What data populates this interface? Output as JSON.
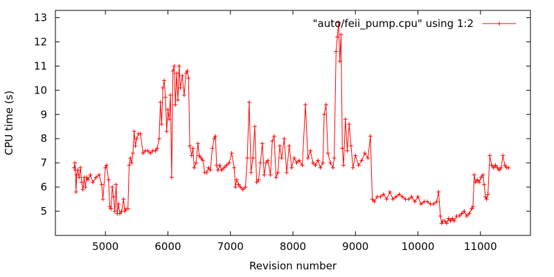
{
  "chart_data": {
    "type": "line",
    "markers": "plus",
    "title": "",
    "xlabel": "Revision number",
    "ylabel": "CPU time (s)",
    "xlim": [
      4200,
      11800
    ],
    "ylim": [
      4.0,
      13.3
    ],
    "xticks": [
      5000,
      6000,
      7000,
      8000,
      9000,
      10000,
      11000
    ],
    "yticks": [
      5,
      6,
      7,
      8,
      9,
      10,
      11,
      12,
      13
    ],
    "legend_position": "top-right",
    "grid": false,
    "series": [
      {
        "name": "\"auto/feii_pump.cpu\" using 1:2",
        "color": "#ff0000",
        "points": [
          [
            4500,
            6.8
          ],
          [
            4510,
            7.0
          ],
          [
            4520,
            6.7
          ],
          [
            4530,
            5.8
          ],
          [
            4540,
            6.5
          ],
          [
            4560,
            6.7
          ],
          [
            4580,
            6.4
          ],
          [
            4600,
            6.8
          ],
          [
            4620,
            6.2
          ],
          [
            4640,
            5.9
          ],
          [
            4660,
            6.4
          ],
          [
            4680,
            6.0
          ],
          [
            4700,
            6.4
          ],
          [
            4720,
            6.3
          ],
          [
            4760,
            6.5
          ],
          [
            4800,
            6.2
          ],
          [
            4850,
            6.4
          ],
          [
            4900,
            6.5
          ],
          [
            4940,
            6.1
          ],
          [
            4960,
            5.5
          ],
          [
            5000,
            6.8
          ],
          [
            5020,
            6.9
          ],
          [
            5050,
            6.3
          ],
          [
            5070,
            5.2
          ],
          [
            5090,
            5.1
          ],
          [
            5110,
            6.0
          ],
          [
            5130,
            5.6
          ],
          [
            5150,
            5.0
          ],
          [
            5170,
            6.1
          ],
          [
            5190,
            4.9
          ],
          [
            5210,
            5.3
          ],
          [
            5230,
            4.9
          ],
          [
            5260,
            5.0
          ],
          [
            5290,
            5.5
          ],
          [
            5310,
            5.0
          ],
          [
            5330,
            5.1
          ],
          [
            5360,
            5.1
          ],
          [
            5380,
            6.9
          ],
          [
            5400,
            7.2
          ],
          [
            5420,
            7.0
          ],
          [
            5440,
            7.4
          ],
          [
            5460,
            8.3
          ],
          [
            5480,
            7.7
          ],
          [
            5500,
            8.0
          ],
          [
            5530,
            8.2
          ],
          [
            5560,
            8.2
          ],
          [
            5600,
            7.4
          ],
          [
            5640,
            7.5
          ],
          [
            5680,
            7.5
          ],
          [
            5720,
            7.4
          ],
          [
            5760,
            7.5
          ],
          [
            5800,
            7.5
          ],
          [
            5830,
            7.6
          ],
          [
            5860,
            8.0
          ],
          [
            5880,
            9.5
          ],
          [
            5900,
            8.6
          ],
          [
            5920,
            10.1
          ],
          [
            5940,
            10.4
          ],
          [
            5960,
            9.7
          ],
          [
            5980,
            8.3
          ],
          [
            6000,
            9.2
          ],
          [
            6020,
            8.8
          ],
          [
            6040,
            9.8
          ],
          [
            6060,
            6.4
          ],
          [
            6080,
            10.8
          ],
          [
            6100,
            11.0
          ],
          [
            6120,
            9.4
          ],
          [
            6140,
            10.7
          ],
          [
            6160,
            9.6
          ],
          [
            6180,
            11.0
          ],
          [
            6200,
            10.1
          ],
          [
            6230,
            10.6
          ],
          [
            6260,
            9.8
          ],
          [
            6290,
            10.7
          ],
          [
            6310,
            10.8
          ],
          [
            6330,
            10.5
          ],
          [
            6350,
            7.7
          ],
          [
            6380,
            7.3
          ],
          [
            6400,
            7.6
          ],
          [
            6420,
            6.8
          ],
          [
            6450,
            7.0
          ],
          [
            6480,
            7.8
          ],
          [
            6500,
            7.3
          ],
          [
            6530,
            7.2
          ],
          [
            6560,
            7.1
          ],
          [
            6590,
            6.6
          ],
          [
            6620,
            6.6
          ],
          [
            6650,
            6.8
          ],
          [
            6680,
            6.7
          ],
          [
            6710,
            7.6
          ],
          [
            6740,
            8.0
          ],
          [
            6760,
            8.1
          ],
          [
            6780,
            6.9
          ],
          [
            6800,
            6.7
          ],
          [
            6830,
            6.9
          ],
          [
            6860,
            6.7
          ],
          [
            6900,
            6.8
          ],
          [
            6940,
            6.9
          ],
          [
            6980,
            7.0
          ],
          [
            7020,
            7.4
          ],
          [
            7060,
            6.8
          ],
          [
            7080,
            6.0
          ],
          [
            7100,
            6.3
          ],
          [
            7130,
            6.1
          ],
          [
            7160,
            6.0
          ],
          [
            7200,
            5.9
          ],
          [
            7240,
            6.0
          ],
          [
            7270,
            7.2
          ],
          [
            7300,
            9.5
          ],
          [
            7330,
            6.6
          ],
          [
            7360,
            7.2
          ],
          [
            7390,
            8.5
          ],
          [
            7420,
            6.2
          ],
          [
            7450,
            6.3
          ],
          [
            7480,
            7.0
          ],
          [
            7510,
            7.8
          ],
          [
            7540,
            6.5
          ],
          [
            7570,
            7.0
          ],
          [
            7600,
            7.1
          ],
          [
            7640,
            6.5
          ],
          [
            7670,
            7.9
          ],
          [
            7700,
            8.1
          ],
          [
            7730,
            6.4
          ],
          [
            7760,
            6.6
          ],
          [
            7790,
            7.7
          ],
          [
            7820,
            7.2
          ],
          [
            7860,
            8.0
          ],
          [
            7900,
            6.6
          ],
          [
            7940,
            7.7
          ],
          [
            7980,
            6.8
          ],
          [
            8020,
            7.2
          ],
          [
            8060,
            7.0
          ],
          [
            8100,
            7.1
          ],
          [
            8150,
            6.9
          ],
          [
            8200,
            9.4
          ],
          [
            8240,
            7.2
          ],
          [
            8280,
            7.5
          ],
          [
            8320,
            7.0
          ],
          [
            8360,
            6.9
          ],
          [
            8400,
            7.1
          ],
          [
            8440,
            6.8
          ],
          [
            8480,
            7.0
          ],
          [
            8500,
            9.0
          ],
          [
            8530,
            9.4
          ],
          [
            8560,
            7.4
          ],
          [
            8600,
            7.0
          ],
          [
            8640,
            6.8
          ],
          [
            8660,
            7.2
          ],
          [
            8690,
            11.6
          ],
          [
            8710,
            12.2
          ],
          [
            8730,
            12.8
          ],
          [
            8750,
            11.2
          ],
          [
            8770,
            12.3
          ],
          [
            8790,
            7.6
          ],
          [
            8810,
            6.9
          ],
          [
            8840,
            8.8
          ],
          [
            8870,
            7.5
          ],
          [
            8900,
            8.6
          ],
          [
            8930,
            7.7
          ],
          [
            8960,
            6.8
          ],
          [
            9000,
            7.3
          ],
          [
            9050,
            6.9
          ],
          [
            9100,
            7.1
          ],
          [
            9150,
            7.4
          ],
          [
            9200,
            7.2
          ],
          [
            9240,
            8.1
          ],
          [
            9270,
            5.5
          ],
          [
            9300,
            5.4
          ],
          [
            9350,
            5.6
          ],
          [
            9400,
            5.6
          ],
          [
            9450,
            5.7
          ],
          [
            9500,
            5.5
          ],
          [
            9550,
            5.8
          ],
          [
            9600,
            5.5
          ],
          [
            9650,
            5.6
          ],
          [
            9700,
            5.7
          ],
          [
            9750,
            5.6
          ],
          [
            9800,
            5.5
          ],
          [
            9850,
            5.5
          ],
          [
            9900,
            5.6
          ],
          [
            9950,
            5.4
          ],
          [
            10000,
            5.6
          ],
          [
            10050,
            5.3
          ],
          [
            10100,
            5.4
          ],
          [
            10150,
            5.4
          ],
          [
            10200,
            5.3
          ],
          [
            10250,
            5.3
          ],
          [
            10300,
            5.4
          ],
          [
            10330,
            5.8
          ],
          [
            10360,
            4.8
          ],
          [
            10380,
            4.5
          ],
          [
            10400,
            4.6
          ],
          [
            10430,
            4.6
          ],
          [
            10460,
            4.5
          ],
          [
            10490,
            4.7
          ],
          [
            10520,
            4.6
          ],
          [
            10550,
            4.7
          ],
          [
            10580,
            4.6
          ],
          [
            10620,
            4.8
          ],
          [
            10660,
            4.8
          ],
          [
            10700,
            4.9
          ],
          [
            10740,
            5.0
          ],
          [
            10780,
            4.8
          ],
          [
            10820,
            4.9
          ],
          [
            10860,
            5.1
          ],
          [
            10880,
            5.2
          ],
          [
            10900,
            6.5
          ],
          [
            10920,
            6.2
          ],
          [
            10950,
            6.3
          ],
          [
            10980,
            6.2
          ],
          [
            11010,
            6.4
          ],
          [
            11040,
            6.5
          ],
          [
            11060,
            6.1
          ],
          [
            11080,
            5.6
          ],
          [
            11100,
            5.5
          ],
          [
            11120,
            5.7
          ],
          [
            11150,
            7.3
          ],
          [
            11180,
            6.9
          ],
          [
            11210,
            6.8
          ],
          [
            11240,
            6.9
          ],
          [
            11270,
            6.8
          ],
          [
            11300,
            6.7
          ],
          [
            11330,
            6.8
          ],
          [
            11360,
            7.3
          ],
          [
            11390,
            6.9
          ],
          [
            11420,
            6.8
          ],
          [
            11450,
            6.8
          ]
        ]
      }
    ]
  }
}
